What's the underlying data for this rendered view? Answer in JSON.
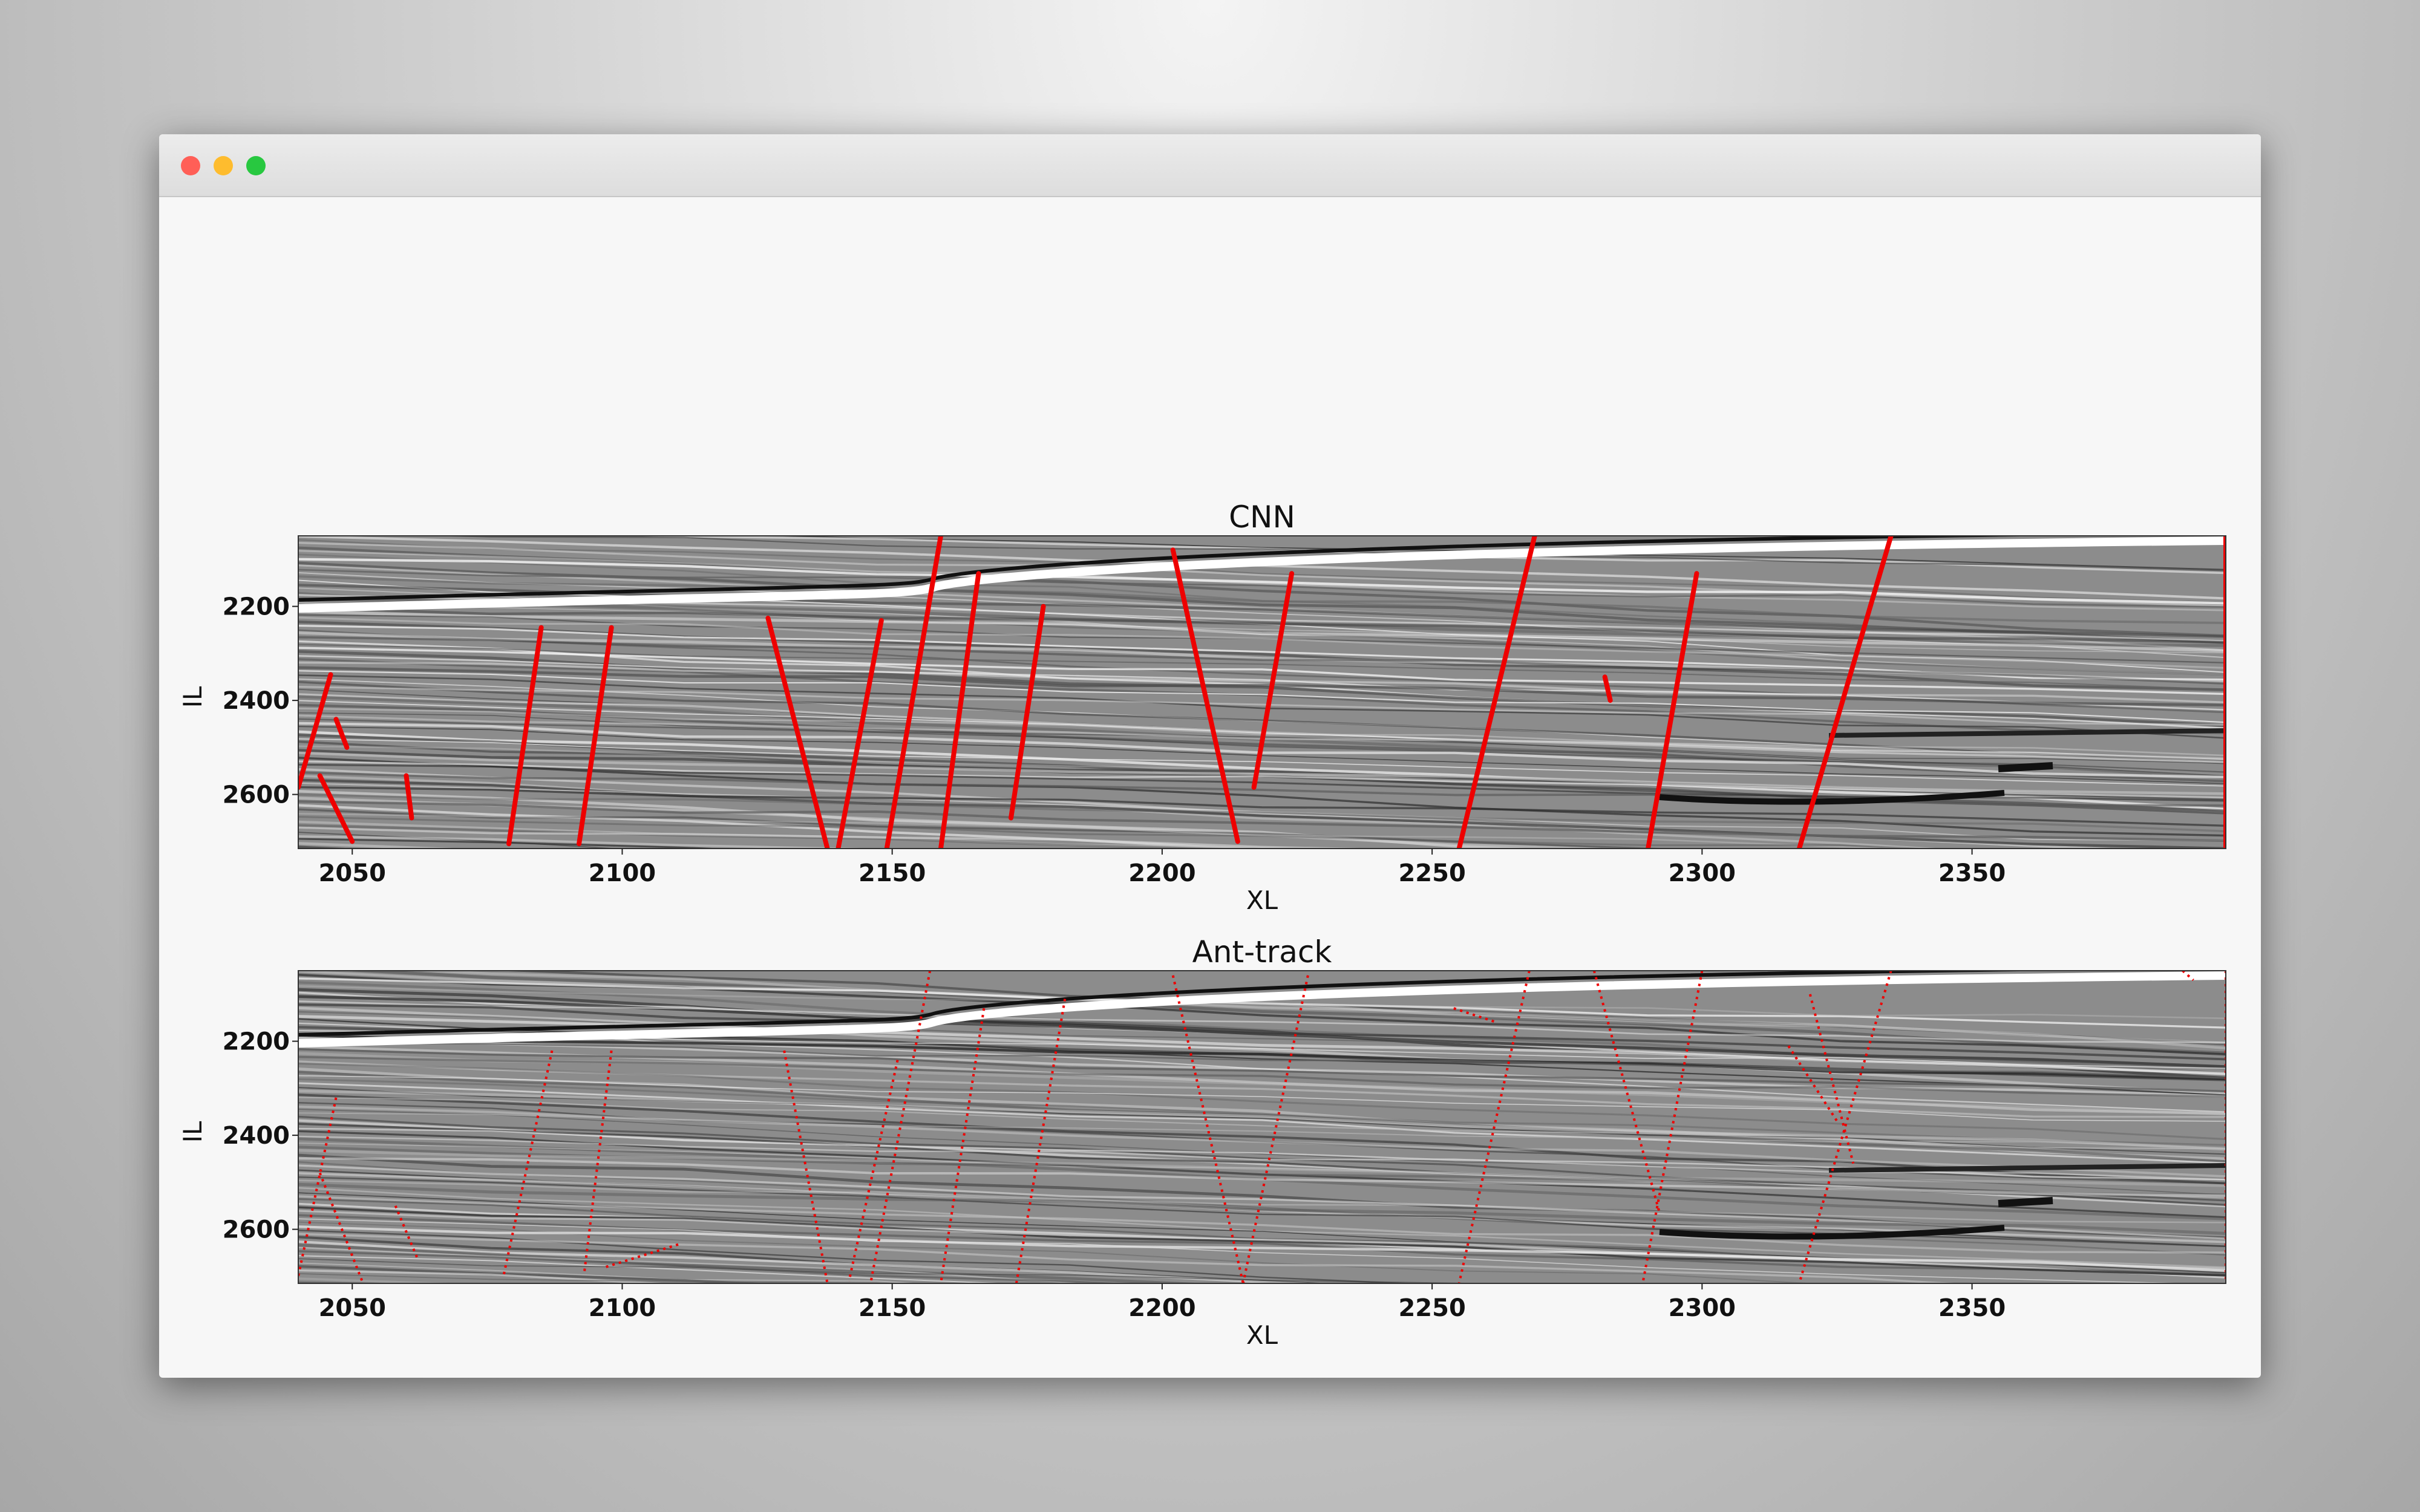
{
  "colors": {
    "fault": "#ee0000",
    "frame": "#333333",
    "seismic_background": "#8c8c8c"
  },
  "window": {
    "traffic_lights": [
      "close",
      "minimize",
      "zoom"
    ]
  },
  "chart_data": [
    {
      "type": "heatmap",
      "title": "CNN",
      "xlabel": "XL",
      "ylabel": "IL",
      "xlim": [
        2040,
        2397
      ],
      "ylim": [
        2050,
        2715
      ],
      "y_inverted": true,
      "xticks": [
        2050,
        2100,
        2150,
        2200,
        2250,
        2300,
        2350
      ],
      "yticks": [
        2200,
        2400,
        2600
      ],
      "overlay": "predicted faults (red)",
      "faults": [
        [
          [
            2046,
            2345
          ],
          [
            2040,
            2585
          ]
        ],
        [
          [
            2044,
            2560
          ],
          [
            2050,
            2700
          ]
        ],
        [
          [
            2047,
            2440
          ],
          [
            2049,
            2500
          ]
        ],
        [
          [
            2060,
            2560
          ],
          [
            2061,
            2650
          ]
        ],
        [
          [
            2085,
            2245
          ],
          [
            2079,
            2705
          ]
        ],
        [
          [
            2098,
            2245
          ],
          [
            2092,
            2705
          ]
        ],
        [
          [
            2127,
            2225
          ],
          [
            2138,
            2715
          ]
        ],
        [
          [
            2148,
            2230
          ],
          [
            2140,
            2715
          ]
        ],
        [
          [
            2159,
            2050
          ],
          [
            2149,
            2715
          ]
        ],
        [
          [
            2166,
            2130
          ],
          [
            2159,
            2715
          ]
        ],
        [
          [
            2178,
            2200
          ],
          [
            2172,
            2650
          ]
        ],
        [
          [
            2202,
            2080
          ],
          [
            2214,
            2700
          ]
        ],
        [
          [
            2224,
            2130
          ],
          [
            2217,
            2585
          ]
        ],
        [
          [
            2269,
            2050
          ],
          [
            2255,
            2715
          ]
        ],
        [
          [
            2282,
            2350
          ],
          [
            2283,
            2400
          ]
        ],
        [
          [
            2299,
            2130
          ],
          [
            2290,
            2715
          ]
        ],
        [
          [
            2335,
            2050
          ],
          [
            2318,
            2715
          ]
        ],
        [
          [
            2397,
            2050
          ],
          [
            2397,
            2715
          ]
        ]
      ]
    },
    {
      "type": "heatmap",
      "title": "Ant-track",
      "xlabel": "XL",
      "ylabel": "IL",
      "xlim": [
        2040,
        2397
      ],
      "ylim": [
        2050,
        2715
      ],
      "y_inverted": true,
      "xticks": [
        2050,
        2100,
        2150,
        2200,
        2250,
        2300,
        2350
      ],
      "yticks": [
        2200,
        2400,
        2600
      ],
      "overlay": "tracked faults (red dotted)",
      "faults": [
        [
          [
            2047,
            2320
          ],
          [
            2040,
            2700
          ]
        ],
        [
          [
            2044,
            2480
          ],
          [
            2052,
            2715
          ]
        ],
        [
          [
            2058,
            2550
          ],
          [
            2062,
            2660
          ]
        ],
        [
          [
            2087,
            2220
          ],
          [
            2078,
            2700
          ]
        ],
        [
          [
            2098,
            2220
          ],
          [
            2093,
            2690
          ]
        ],
        [
          [
            2097,
            2680
          ],
          [
            2111,
            2630
          ]
        ],
        [
          [
            2130,
            2220
          ],
          [
            2138,
            2715
          ]
        ],
        [
          [
            2151,
            2240
          ],
          [
            2142,
            2710
          ]
        ],
        [
          [
            2157,
            2050
          ],
          [
            2146,
            2715
          ]
        ],
        [
          [
            2167,
            2130
          ],
          [
            2159,
            2715
          ]
        ],
        [
          [
            2182,
            2110
          ],
          [
            2173,
            2715
          ]
        ],
        [
          [
            2202,
            2060
          ],
          [
            2215,
            2715
          ]
        ],
        [
          [
            2227,
            2060
          ],
          [
            2215,
            2715
          ]
        ],
        [
          [
            2254,
            2130
          ],
          [
            2262,
            2160
          ]
        ],
        [
          [
            2268,
            2050
          ],
          [
            2255,
            2715
          ]
        ],
        [
          [
            2280,
            2050
          ],
          [
            2292,
            2560
          ]
        ],
        [
          [
            2300,
            2050
          ],
          [
            2289,
            2715
          ]
        ],
        [
          [
            2316,
            2210
          ],
          [
            2325,
            2370
          ]
        ],
        [
          [
            2320,
            2100
          ],
          [
            2328,
            2460
          ]
        ],
        [
          [
            2335,
            2050
          ],
          [
            2318,
            2715
          ]
        ],
        [
          [
            2389,
            2050
          ],
          [
            2391,
            2070
          ]
        ],
        [
          [
            2397,
            2050
          ],
          [
            2397,
            2715
          ]
        ]
      ]
    }
  ]
}
